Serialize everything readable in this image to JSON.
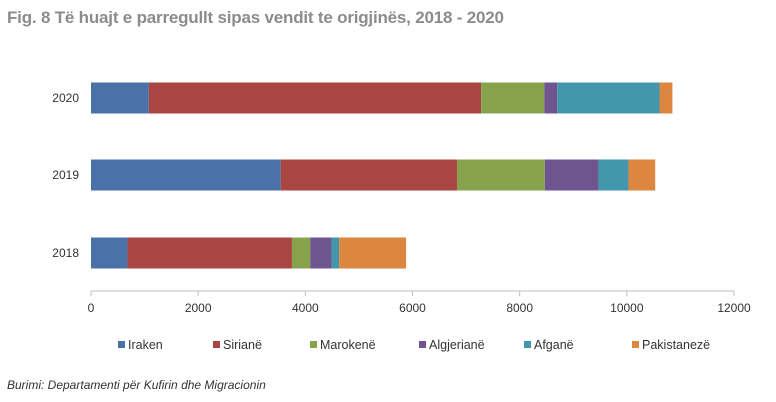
{
  "title": "Fig. 8 Të huajt e parregullt sipas vendit te origjinës, 2018 - 2020",
  "source": "Burimi: Departamenti për Kufirin dhe Migracionin",
  "chart_data": {
    "type": "bar",
    "orientation": "horizontal",
    "stacked": true,
    "categories": [
      "2018",
      "2019",
      "2020"
    ],
    "series": [
      {
        "name": "Iraken",
        "color": "#4a72a9",
        "values": [
          680,
          3540,
          1080
        ]
      },
      {
        "name": "Sirianë",
        "color": "#a94542",
        "values": [
          3070,
          3290,
          6200
        ]
      },
      {
        "name": "Marokenë",
        "color": "#86a34c",
        "values": [
          340,
          1640,
          1180
        ]
      },
      {
        "name": "Algjerianë",
        "color": "#6e5590",
        "values": [
          400,
          1000,
          240
        ]
      },
      {
        "name": "Afganë",
        "color": "#4397ad",
        "values": [
          140,
          560,
          1910
        ]
      },
      {
        "name": "Pakistanezë",
        "color": "#dc8640",
        "values": [
          1250,
          500,
          240
        ]
      }
    ],
    "xlim": [
      0,
      12000
    ],
    "xticks": [
      0,
      2000,
      4000,
      6000,
      8000,
      10000,
      12000
    ],
    "grid": false,
    "legend_position": "bottom",
    "xlabel": "",
    "ylabel": ""
  }
}
